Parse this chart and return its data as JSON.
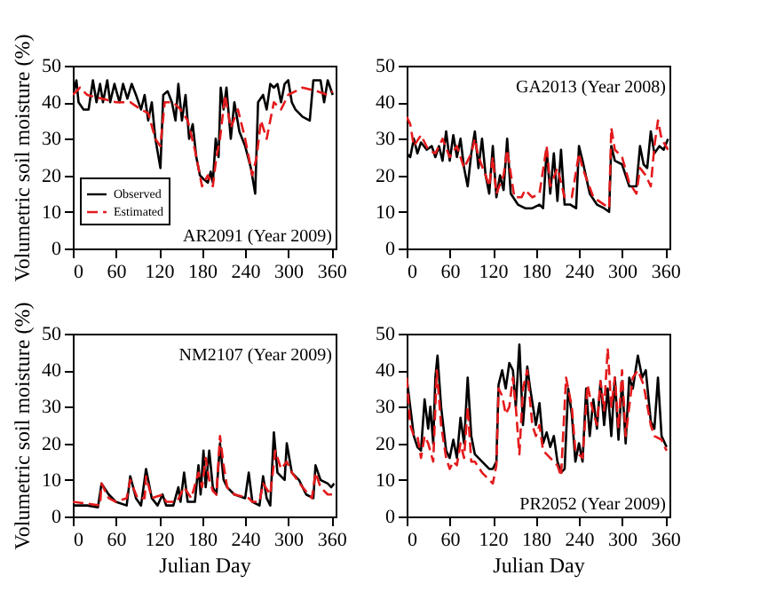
{
  "chart_data": [
    {
      "type": "line",
      "ylabel": "Volumetric soil moisture (%)",
      "annotations": [
        "AR2091 (Year 2009)"
      ],
      "xlim": [
        0,
        366
      ],
      "xticks": [
        0,
        60,
        120,
        180,
        240,
        300,
        360
      ],
      "ylim": [
        0,
        50
      ],
      "yticks": [
        0,
        10,
        20,
        30,
        40,
        50
      ],
      "grid": false,
      "legend": "bottom left",
      "series": [
        {
          "name": "Observed",
          "color": "#000000",
          "line_style": "solid",
          "x": [
            0,
            5,
            8,
            15,
            22,
            28,
            33,
            38,
            42,
            48,
            52,
            58,
            65,
            70,
            76,
            82,
            88,
            95,
            100,
            105,
            110,
            115,
            122,
            126,
            132,
            138,
            143,
            147,
            152,
            157,
            162,
            167,
            172,
            177,
            182,
            188,
            192,
            195,
            199,
            203,
            206,
            210,
            214,
            220,
            225,
            232,
            240,
            248,
            254,
            258,
            265,
            270,
            275,
            280,
            285,
            290,
            295,
            300,
            305,
            310,
            320,
            330,
            335,
            345,
            350,
            355,
            362
          ],
          "values": [
            42,
            46,
            40,
            38,
            38,
            46,
            40,
            45,
            40,
            46,
            40,
            45,
            40,
            45,
            41,
            45,
            42,
            38,
            42,
            35,
            40,
            30,
            22,
            42,
            43,
            40,
            35,
            45,
            35,
            42,
            30,
            34,
            25,
            20,
            19,
            18,
            21,
            18,
            30,
            25,
            44,
            38,
            44,
            30,
            40,
            32,
            28,
            22,
            15,
            40,
            42,
            38,
            45,
            44,
            45,
            40,
            45,
            46,
            40,
            38,
            36,
            35,
            46,
            46,
            40,
            46,
            42
          ]
        },
        {
          "name": "Estimated",
          "color": "#e41a1c",
          "line_style": "dashed",
          "x": [
            0,
            10,
            20,
            40,
            60,
            80,
            95,
            105,
            115,
            122,
            128,
            140,
            150,
            160,
            170,
            180,
            188,
            195,
            200,
            205,
            212,
            220,
            230,
            240,
            250,
            256,
            262,
            270,
            280,
            290,
            300,
            320,
            340,
            355,
            362
          ],
          "values": [
            42,
            44,
            42,
            41,
            40,
            40,
            38,
            37,
            30,
            28,
            40,
            40,
            38,
            35,
            27,
            17,
            20,
            17,
            25,
            30,
            42,
            33,
            38,
            30,
            20,
            25,
            35,
            30,
            40,
            38,
            42,
            44,
            43,
            42,
            43
          ]
        }
      ]
    },
    {
      "type": "line",
      "annotations": [
        "GA2013 (Year 2008)"
      ],
      "xlim": [
        0,
        366
      ],
      "xticks": [
        0,
        60,
        120,
        180,
        240,
        300,
        360
      ],
      "ylim": [
        0,
        50
      ],
      "yticks": [
        0,
        10,
        20,
        30,
        40,
        50
      ],
      "grid": false,
      "series": [
        {
          "color": "#000000",
          "line_style": "solid",
          "x": [
            0,
            5,
            10,
            15,
            20,
            28,
            35,
            40,
            45,
            50,
            55,
            60,
            65,
            70,
            75,
            80,
            85,
            90,
            95,
            100,
            105,
            110,
            115,
            120,
            125,
            130,
            135,
            140,
            145,
            155,
            165,
            175,
            185,
            190,
            195,
            200,
            205,
            210,
            215,
            220,
            228,
            236,
            240,
            245,
            255,
            265,
            275,
            282,
            285,
            290,
            300,
            310,
            320,
            325,
            330,
            335,
            340,
            345,
            352,
            358,
            364
          ],
          "values": [
            26,
            25,
            30,
            26,
            29,
            27,
            28,
            25,
            28,
            24,
            32,
            24,
            31,
            25,
            30,
            22,
            17,
            26,
            32,
            22,
            30,
            20,
            15,
            28,
            14,
            20,
            16,
            30,
            15,
            12,
            11,
            11,
            12,
            11,
            27,
            15,
            26,
            13,
            27,
            12,
            12,
            11,
            28,
            24,
            15,
            12,
            11,
            10,
            28,
            24,
            23,
            17,
            17,
            28,
            23,
            22,
            32,
            26,
            28,
            27,
            30
          ]
        },
        {
          "color": "#e41a1c",
          "line_style": "dashed",
          "x": [
            0,
            5,
            10,
            20,
            30,
            40,
            50,
            60,
            70,
            80,
            90,
            95,
            100,
            110,
            115,
            120,
            125,
            135,
            140,
            150,
            160,
            165,
            175,
            185,
            195,
            200,
            210,
            220,
            230,
            240,
            245,
            260,
            275,
            282,
            285,
            290,
            300,
            310,
            320,
            325,
            333,
            340,
            345,
            350,
            355,
            364
          ],
          "values": [
            36,
            34,
            28,
            31,
            27,
            26,
            30,
            25,
            28,
            22,
            26,
            30,
            25,
            20,
            17,
            25,
            15,
            20,
            27,
            14,
            14,
            16,
            14,
            15,
            28,
            17,
            22,
            14,
            14,
            26,
            22,
            14,
            12,
            11,
            33,
            27,
            25,
            18,
            15,
            22,
            20,
            17,
            28,
            35,
            30,
            27
          ]
        }
      ]
    },
    {
      "type": "line",
      "ylabel": "Volumetric soil moisture (%)",
      "xlabel": "Julian Day",
      "annotations": [
        "NM2107 (Year 2009)"
      ],
      "xlim": [
        0,
        366
      ],
      "xticks": [
        0,
        60,
        120,
        180,
        240,
        300,
        360
      ],
      "ylim": [
        0,
        50
      ],
      "yticks": [
        0,
        10,
        20,
        30,
        40,
        50
      ],
      "grid": false,
      "series": [
        {
          "color": "#000000",
          "line_style": "solid",
          "x": [
            0,
            20,
            35,
            40,
            50,
            60,
            75,
            80,
            88,
            95,
            102,
            110,
            118,
            125,
            130,
            140,
            147,
            150,
            155,
            160,
            170,
            175,
            178,
            182,
            185,
            190,
            195,
            200,
            205,
            210,
            215,
            225,
            240,
            245,
            250,
            260,
            265,
            270,
            275,
            280,
            285,
            295,
            298,
            305,
            315,
            325,
            335,
            338,
            345,
            355,
            360,
            364
          ],
          "values": [
            3,
            3,
            2.5,
            9,
            6,
            4,
            3,
            11,
            5,
            3,
            13,
            5,
            3,
            6,
            3,
            3,
            8,
            4,
            12,
            4,
            4,
            14,
            6,
            18,
            8,
            18,
            8,
            6,
            20,
            10,
            8,
            6,
            5,
            12,
            4,
            3,
            11,
            5,
            3,
            23,
            12,
            10,
            20,
            12,
            10,
            6,
            5,
            14,
            10,
            9,
            8,
            9
          ]
        },
        {
          "color": "#e41a1c",
          "line_style": "dashed",
          "x": [
            0,
            20,
            38,
            40,
            50,
            60,
            75,
            80,
            90,
            100,
            102,
            110,
            125,
            130,
            145,
            150,
            155,
            165,
            175,
            180,
            185,
            190,
            195,
            200,
            205,
            210,
            215,
            225,
            245,
            250,
            260,
            265,
            275,
            282,
            290,
            298,
            305,
            320,
            333,
            338,
            345,
            355,
            364
          ],
          "values": [
            4,
            3.5,
            3,
            9,
            5,
            4,
            5,
            10,
            5,
            5,
            11,
            5,
            6,
            4,
            4,
            6,
            8,
            5,
            12,
            8,
            16,
            10,
            7,
            6,
            22,
            14,
            8,
            6,
            5,
            4,
            4,
            9,
            6,
            18,
            13,
            15,
            12,
            8,
            5,
            12,
            8,
            6,
            6
          ]
        }
      ]
    },
    {
      "type": "line",
      "xlabel": "Julian Day",
      "annotations": [
        "PR2052 (Year 2009)"
      ],
      "xlim": [
        0,
        366
      ],
      "xticks": [
        0,
        60,
        120,
        180,
        240,
        300,
        360
      ],
      "ylim": [
        0,
        50
      ],
      "yticks": [
        0,
        10,
        20,
        30,
        40,
        50
      ],
      "grid": false,
      "series": [
        {
          "color": "#000000",
          "line_style": "solid",
          "x": [
            0,
            5,
            10,
            15,
            20,
            25,
            30,
            33,
            37,
            40,
            43,
            48,
            55,
            60,
            65,
            70,
            75,
            80,
            85,
            90,
            95,
            105,
            115,
            120,
            125,
            128,
            133,
            138,
            143,
            148,
            152,
            157,
            162,
            168,
            172,
            180,
            185,
            190,
            195,
            200,
            205,
            210,
            215,
            220,
            225,
            230,
            235,
            240,
            245,
            250,
            255,
            260,
            265,
            270,
            275,
            280,
            285,
            290,
            295,
            300,
            305,
            310,
            315,
            322,
            328,
            333,
            340,
            345,
            350,
            355,
            362
          ],
          "values": [
            38,
            30,
            22,
            19,
            18,
            32,
            24,
            30,
            20,
            38,
            44,
            30,
            18,
            16,
            21,
            16,
            27,
            20,
            38,
            22,
            17,
            15,
            13,
            13,
            15,
            36,
            40,
            35,
            42,
            40,
            30,
            47,
            25,
            41,
            35,
            25,
            31,
            20,
            23,
            19,
            22,
            15,
            12,
            13,
            35,
            28,
            15,
            20,
            15,
            35,
            22,
            32,
            24,
            37,
            25,
            35,
            22,
            38,
            21,
            37,
            20,
            38,
            35,
            44,
            38,
            40,
            26,
            24,
            38,
            22,
            19
          ]
        },
        {
          "color": "#e41a1c",
          "line_style": "dashed",
          "x": [
            0,
            5,
            10,
            15,
            20,
            25,
            30,
            37,
            42,
            48,
            55,
            60,
            65,
            70,
            75,
            80,
            85,
            90,
            95,
            105,
            115,
            120,
            125,
            128,
            133,
            138,
            143,
            148,
            152,
            157,
            162,
            168,
            175,
            180,
            185,
            190,
            200,
            210,
            215,
            222,
            230,
            235,
            245,
            252,
            258,
            265,
            270,
            275,
            280,
            285,
            290,
            295,
            300,
            305,
            315,
            322,
            330,
            340,
            345,
            355,
            362
          ],
          "values": [
            38,
            25,
            22,
            22,
            16,
            22,
            20,
            15,
            40,
            25,
            16,
            13,
            15,
            14,
            20,
            16,
            30,
            15,
            15,
            12,
            10,
            9,
            14,
            35,
            33,
            28,
            30,
            38,
            30,
            17,
            35,
            40,
            25,
            22,
            25,
            18,
            16,
            14,
            11,
            38,
            30,
            18,
            16,
            36,
            30,
            25,
            37,
            29,
            46,
            30,
            38,
            24,
            40,
            22,
            38,
            40,
            36,
            25,
            22,
            21,
            18
          ]
        }
      ]
    }
  ]
}
